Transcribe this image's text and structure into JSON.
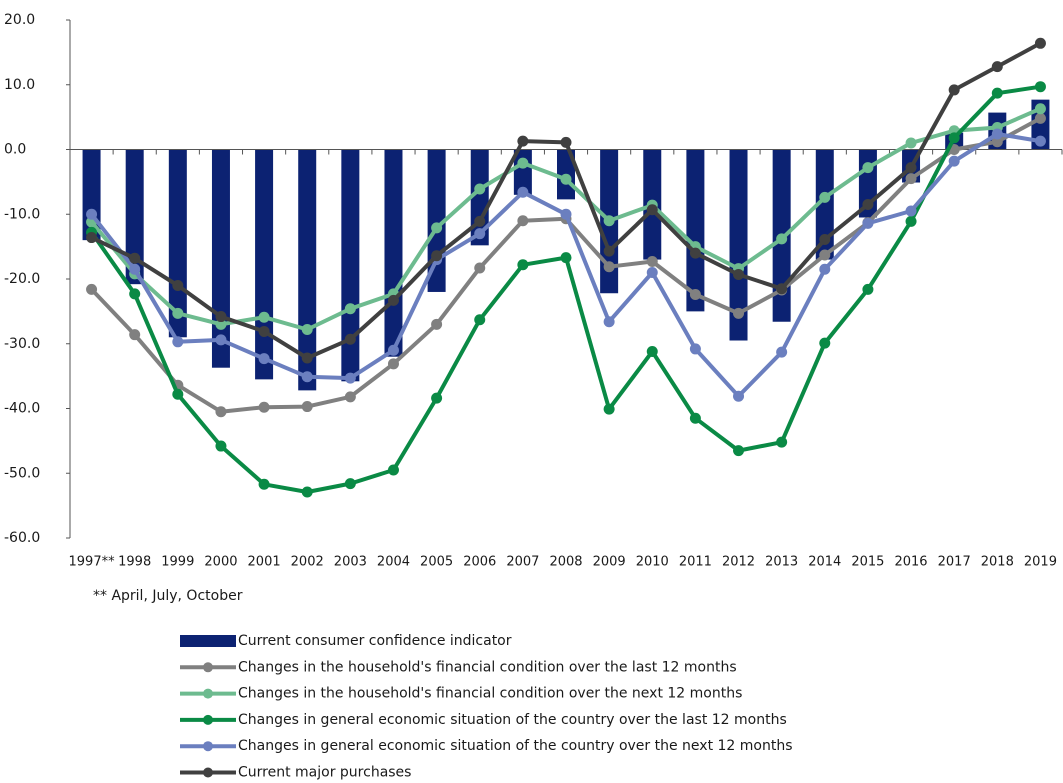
{
  "chart_data": {
    "type": "combo",
    "categories": [
      "1997**",
      "1998",
      "1999",
      "2000",
      "2001",
      "2002",
      "2003",
      "2004",
      "2005",
      "2006",
      "2007",
      "2008",
      "2009",
      "2010",
      "2011",
      "2012",
      "2013",
      "2014",
      "2015",
      "2016",
      "2017",
      "2018",
      "2019"
    ],
    "ylim": [
      -60,
      20
    ],
    "yticks": [
      {
        "value": -60,
        "label": "-60.0"
      },
      {
        "value": -50,
        "label": "-50.0"
      },
      {
        "value": -40,
        "label": "-40.0"
      },
      {
        "value": -30,
        "label": "-30.0"
      },
      {
        "value": -20,
        "label": "-20.0"
      },
      {
        "value": -10,
        "label": "-10.0"
      },
      {
        "value": 0,
        "label": "0.0"
      },
      {
        "value": 10,
        "label": "10.0"
      },
      {
        "value": 20,
        "label": "20.0"
      }
    ],
    "footnote": "** April, July, October",
    "series": [
      {
        "name": "Current consumer confidence indicator",
        "type": "bar",
        "color": "#0c2272",
        "values": [
          -14,
          -20.8,
          -29,
          -33.7,
          -35.5,
          -37.2,
          -35.8,
          -32,
          -22,
          -14.8,
          -7,
          -7.7,
          -22.2,
          -17,
          -25,
          -29.5,
          -26.6,
          -17,
          -10.5,
          -5.1,
          2.6,
          5.7,
          7.7
        ]
      },
      {
        "name": "Changes in the household's financial condition over the last 12 months",
        "type": "line",
        "color": "#808080",
        "values": [
          -21.6,
          -28.6,
          -36.4,
          -40.5,
          -39.8,
          -39.7,
          -38.2,
          -33.1,
          -27,
          -18.3,
          -11,
          -10.7,
          -18.1,
          -17.3,
          -22.4,
          -25.3,
          -21.7,
          -16.3,
          -11.3,
          -4.5,
          0,
          1.2,
          4.8
        ]
      },
      {
        "name": "Changes in the household's financial condition over the next 12 months",
        "type": "line",
        "color": "#6dbb8f",
        "values": [
          -11.2,
          -19.2,
          -25.3,
          -27,
          -25.9,
          -27.8,
          -24.6,
          -22.3,
          -12.1,
          -6.1,
          -2.1,
          -4.6,
          -11,
          -8.6,
          -15,
          -18.4,
          -13.8,
          -7.4,
          -2.8,
          1,
          2.9,
          3.4,
          6.3
        ]
      },
      {
        "name": "Changes in general economic situation of the country over the last 12 months",
        "type": "line",
        "color": "#0a8a45",
        "values": [
          -12.8,
          -22.3,
          -37.8,
          -45.8,
          -51.7,
          -52.9,
          -51.6,
          -49.5,
          -38.4,
          -26.3,
          -17.8,
          -16.7,
          -40.1,
          -31.2,
          -41.5,
          -46.5,
          -45.2,
          -29.9,
          -21.6,
          -11.1,
          1.8,
          8.7,
          9.7
        ]
      },
      {
        "name": "Changes in general economic situation of the country over the next 12 months",
        "type": "line",
        "color": "#6b7fbf",
        "values": [
          -10,
          -18.5,
          -29.7,
          -29.4,
          -32.3,
          -35.1,
          -35.3,
          -31,
          -17,
          -13,
          -6.6,
          -10,
          -26.6,
          -19,
          -30.8,
          -38.1,
          -31.3,
          -18.5,
          -11.4,
          -9.5,
          -1.8,
          2.4,
          1.3
        ]
      },
      {
        "name": "Current major purchases",
        "type": "line",
        "color": "#404040",
        "values": [
          -13.6,
          -16.8,
          -21,
          -25.8,
          -28.1,
          -32.2,
          -29.3,
          -23.3,
          -16.4,
          -11.1,
          1.3,
          1.1,
          -15.7,
          -9.3,
          -16,
          -19.3,
          -21.5,
          -13.9,
          -8.5,
          -2.8,
          9.2,
          12.8,
          16.4
        ]
      }
    ]
  }
}
